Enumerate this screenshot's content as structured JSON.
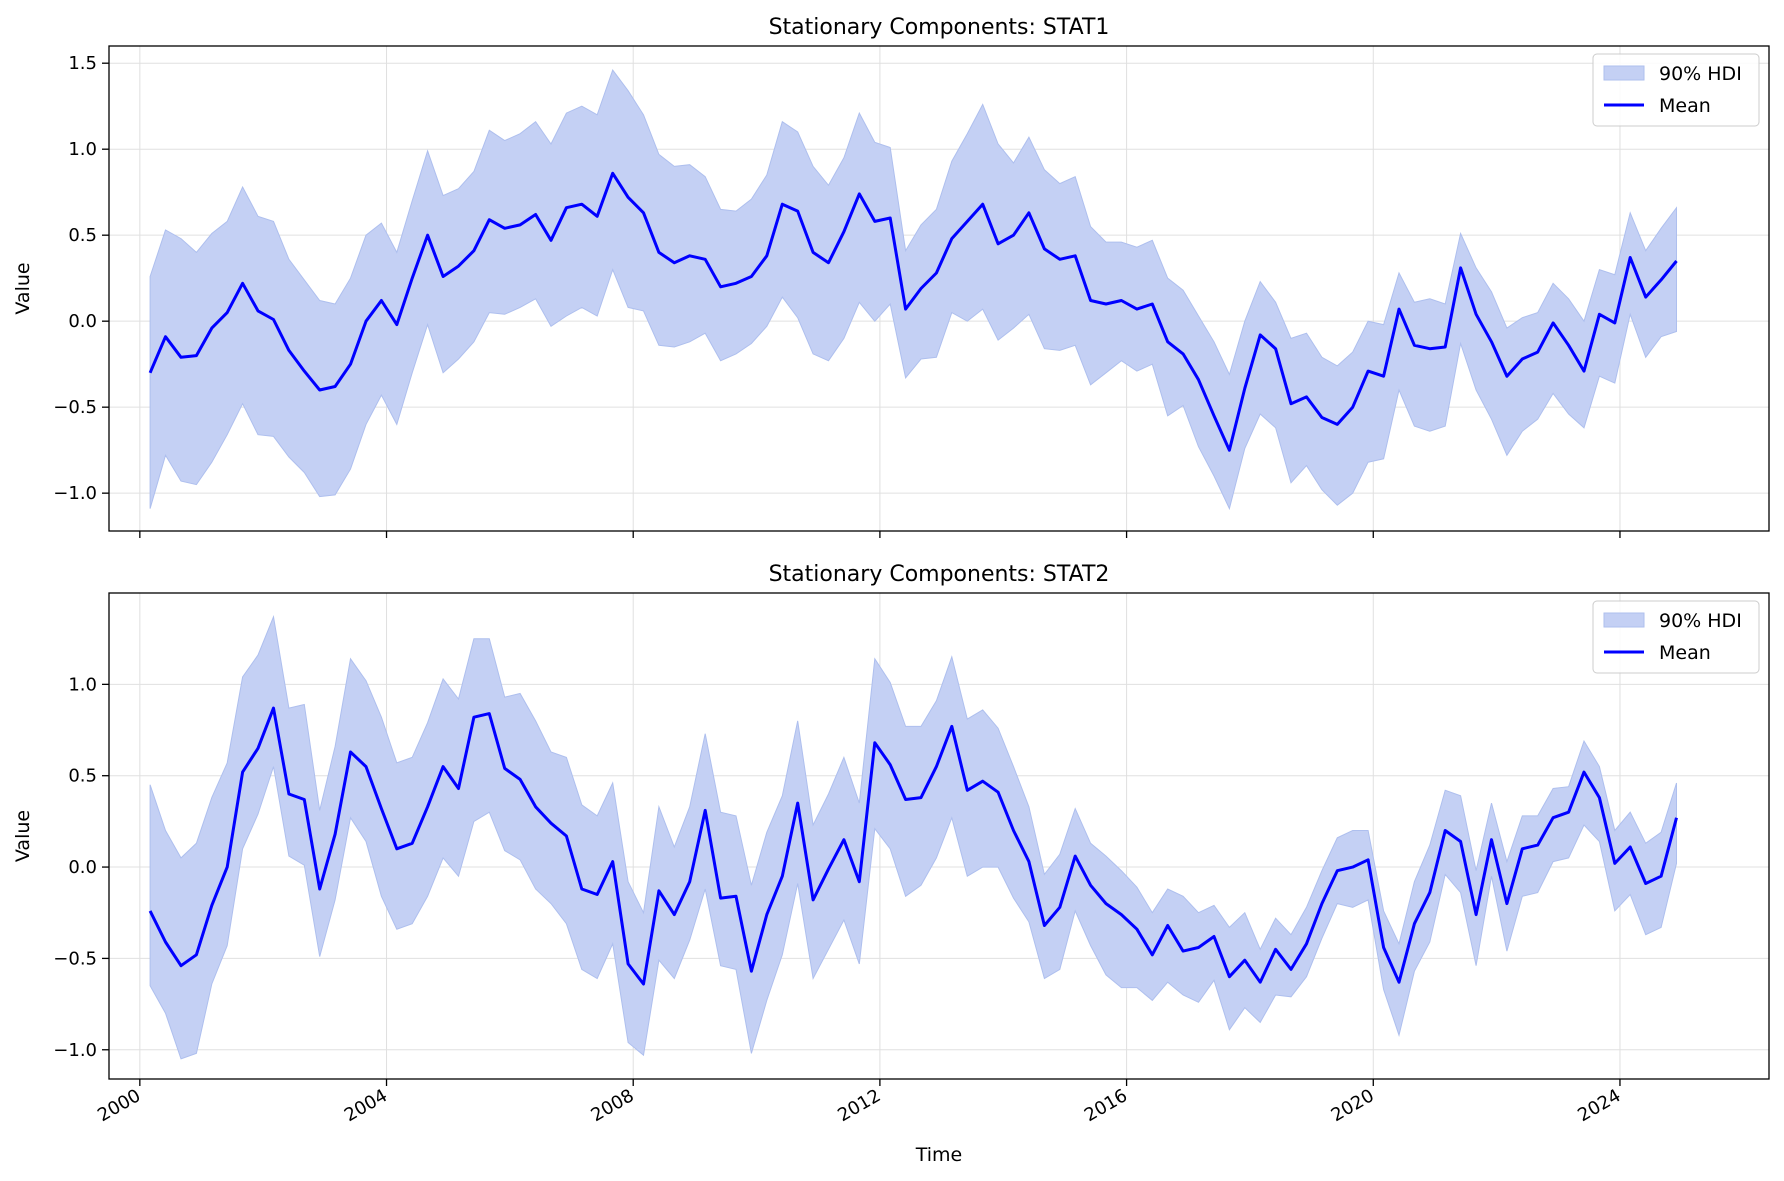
{
  "chart_data": [
    {
      "type": "line",
      "title": "Stationary Components: STAT1",
      "ylabel": "Value",
      "xlabel": "",
      "x_ticks": [
        "2000",
        "2004",
        "2008",
        "2012",
        "2016",
        "2020",
        "2024"
      ],
      "y_ticks": [
        "−1.0",
        "−0.5",
        "0.0",
        "0.5",
        "1.0",
        "1.5"
      ],
      "ylim": [
        -1.22,
        1.6
      ],
      "xlim": [
        "1999-07",
        "2026-06"
      ],
      "grid": true,
      "legend_position": "upper right",
      "legend": [
        "90% HDI",
        "Mean"
      ],
      "colors": {
        "mean": "#0000ff",
        "hdi_fill": "#c4d0f4",
        "hdi_edge": "#aebfee"
      },
      "x": [
        "2000-03",
        "2000-06",
        "2000-09",
        "2000-12",
        "2001-03",
        "2001-06",
        "2001-09",
        "2001-12",
        "2002-03",
        "2002-06",
        "2002-09",
        "2002-12",
        "2003-03",
        "2003-06",
        "2003-09",
        "2003-12",
        "2004-03",
        "2004-06",
        "2004-09",
        "2004-12",
        "2005-03",
        "2005-06",
        "2005-09",
        "2005-12",
        "2006-03",
        "2006-06",
        "2006-09",
        "2006-12",
        "2007-03",
        "2007-06",
        "2007-09",
        "2007-12",
        "2008-03",
        "2008-06",
        "2008-09",
        "2008-12",
        "2009-03",
        "2009-06",
        "2009-09",
        "2009-12",
        "2010-03",
        "2010-06",
        "2010-09",
        "2010-12",
        "2011-03",
        "2011-06",
        "2011-09",
        "2011-12",
        "2012-03",
        "2012-06",
        "2012-09",
        "2012-12",
        "2013-03",
        "2013-06",
        "2013-09",
        "2013-12",
        "2014-03",
        "2014-06",
        "2014-09",
        "2014-12",
        "2015-03",
        "2015-06",
        "2015-09",
        "2015-12",
        "2016-03",
        "2016-06",
        "2016-09",
        "2016-12",
        "2017-03",
        "2017-06",
        "2017-09",
        "2017-12",
        "2018-03",
        "2018-06",
        "2018-09",
        "2018-12",
        "2019-03",
        "2019-06",
        "2019-09",
        "2019-12",
        "2020-03",
        "2020-06",
        "2020-09",
        "2020-12",
        "2021-03",
        "2021-06",
        "2021-09",
        "2021-12",
        "2022-03",
        "2022-06",
        "2022-09",
        "2022-12",
        "2023-03",
        "2023-06",
        "2023-09",
        "2023-12",
        "2024-03",
        "2024-06",
        "2024-09",
        "2024-12"
      ],
      "series": [
        {
          "name": "Mean",
          "values": [
            -0.3,
            -0.09,
            -0.21,
            -0.2,
            -0.04,
            0.05,
            0.22,
            0.06,
            0.01,
            -0.17,
            -0.29,
            -0.4,
            -0.38,
            -0.25,
            0.0,
            0.12,
            -0.02,
            0.25,
            0.5,
            0.26,
            0.32,
            0.41,
            0.59,
            0.54,
            0.56,
            0.62,
            0.47,
            0.66,
            0.68,
            0.61,
            0.86,
            0.72,
            0.63,
            0.4,
            0.34,
            0.38,
            0.36,
            0.2,
            0.22,
            0.26,
            0.38,
            0.68,
            0.64,
            0.4,
            0.34,
            0.52,
            0.74,
            0.58,
            0.6,
            0.07,
            0.19,
            0.28,
            0.48,
            0.58,
            0.68,
            0.45,
            0.5,
            0.63,
            0.42,
            0.36,
            0.38,
            0.12,
            0.1,
            0.12,
            0.07,
            0.1,
            -0.12,
            -0.19,
            -0.34,
            -0.55,
            -0.75,
            -0.39,
            -0.08,
            -0.16,
            -0.48,
            -0.44,
            -0.56,
            -0.6,
            -0.5,
            -0.29,
            -0.32,
            0.07,
            -0.14,
            -0.16,
            -0.15,
            0.31,
            0.04,
            -0.12,
            -0.32,
            -0.22,
            -0.18,
            -0.01,
            -0.14,
            -0.29,
            0.04,
            -0.01,
            0.37,
            0.14,
            0.24,
            0.35
          ]
        },
        {
          "name": "90% HDI",
          "lower": [
            -1.09,
            -0.78,
            -0.93,
            -0.95,
            -0.82,
            -0.66,
            -0.48,
            -0.66,
            -0.67,
            -0.79,
            -0.88,
            -1.02,
            -1.01,
            -0.86,
            -0.6,
            -0.43,
            -0.6,
            -0.3,
            -0.02,
            -0.3,
            -0.22,
            -0.12,
            0.05,
            0.04,
            0.08,
            0.13,
            -0.03,
            0.03,
            0.08,
            0.03,
            0.3,
            0.08,
            0.06,
            -0.14,
            -0.15,
            -0.12,
            -0.07,
            -0.23,
            -0.19,
            -0.13,
            -0.03,
            0.14,
            0.02,
            -0.19,
            -0.23,
            -0.1,
            0.11,
            0.0,
            0.1,
            -0.33,
            -0.22,
            -0.21,
            0.05,
            0.0,
            0.07,
            -0.11,
            -0.04,
            0.04,
            -0.16,
            -0.17,
            -0.14,
            -0.37,
            -0.3,
            -0.23,
            -0.29,
            -0.25,
            -0.55,
            -0.49,
            -0.73,
            -0.9,
            -1.09,
            -0.74,
            -0.54,
            -0.62,
            -0.94,
            -0.84,
            -0.98,
            -1.07,
            -1.0,
            -0.82,
            -0.8,
            -0.4,
            -0.61,
            -0.64,
            -0.61,
            -0.13,
            -0.4,
            -0.57,
            -0.78,
            -0.64,
            -0.57,
            -0.42,
            -0.54,
            -0.62,
            -0.32,
            -0.36,
            0.04,
            -0.21,
            -0.09,
            -0.06
          ],
          "upper": [
            0.26,
            0.53,
            0.48,
            0.4,
            0.51,
            0.58,
            0.78,
            0.61,
            0.58,
            0.36,
            0.24,
            0.12,
            0.1,
            0.25,
            0.5,
            0.57,
            0.4,
            0.7,
            0.99,
            0.73,
            0.77,
            0.87,
            1.11,
            1.05,
            1.09,
            1.16,
            1.03,
            1.21,
            1.25,
            1.2,
            1.46,
            1.34,
            1.2,
            0.97,
            0.9,
            0.91,
            0.84,
            0.65,
            0.64,
            0.71,
            0.85,
            1.16,
            1.1,
            0.9,
            0.79,
            0.95,
            1.21,
            1.04,
            1.01,
            0.41,
            0.56,
            0.65,
            0.93,
            1.09,
            1.26,
            1.03,
            0.92,
            1.07,
            0.88,
            0.8,
            0.84,
            0.55,
            0.46,
            0.46,
            0.43,
            0.47,
            0.25,
            0.18,
            0.03,
            -0.12,
            -0.31,
            0.0,
            0.23,
            0.11,
            -0.1,
            -0.07,
            -0.21,
            -0.26,
            -0.18,
            0.0,
            -0.02,
            0.28,
            0.11,
            0.13,
            0.1,
            0.51,
            0.31,
            0.17,
            -0.04,
            0.02,
            0.05,
            0.22,
            0.13,
            0.0,
            0.3,
            0.27,
            0.63,
            0.41,
            0.54,
            0.66
          ]
        }
      ]
    },
    {
      "type": "line",
      "title": "Stationary Components: STAT2",
      "ylabel": "Value",
      "xlabel": "Time",
      "x_ticks": [
        "2000",
        "2004",
        "2008",
        "2012",
        "2016",
        "2020",
        "2024"
      ],
      "y_ticks": [
        "−1.0",
        "−0.5",
        "0.0",
        "0.5",
        "1.0"
      ],
      "ylim": [
        -1.16,
        1.5
      ],
      "xlim": [
        "1999-07",
        "2026-06"
      ],
      "grid": true,
      "legend_position": "upper right",
      "legend": [
        "90% HDI",
        "Mean"
      ],
      "colors": {
        "mean": "#0000ff",
        "hdi_fill": "#c4d0f4",
        "hdi_edge": "#aebfee"
      },
      "x": [
        "2000-03",
        "2000-06",
        "2000-09",
        "2000-12",
        "2001-03",
        "2001-06",
        "2001-09",
        "2001-12",
        "2002-03",
        "2002-06",
        "2002-09",
        "2002-12",
        "2003-03",
        "2003-06",
        "2003-09",
        "2003-12",
        "2004-03",
        "2004-06",
        "2004-09",
        "2004-12",
        "2005-03",
        "2005-06",
        "2005-09",
        "2005-12",
        "2006-03",
        "2006-06",
        "2006-09",
        "2006-12",
        "2007-03",
        "2007-06",
        "2007-09",
        "2007-12",
        "2008-03",
        "2008-06",
        "2008-09",
        "2008-12",
        "2009-03",
        "2009-06",
        "2009-09",
        "2009-12",
        "2010-03",
        "2010-06",
        "2010-09",
        "2010-12",
        "2011-03",
        "2011-06",
        "2011-09",
        "2011-12",
        "2012-03",
        "2012-06",
        "2012-09",
        "2012-12",
        "2013-03",
        "2013-06",
        "2013-09",
        "2013-12",
        "2014-03",
        "2014-06",
        "2014-09",
        "2014-12",
        "2015-03",
        "2015-06",
        "2015-09",
        "2015-12",
        "2016-03",
        "2016-06",
        "2016-09",
        "2016-12",
        "2017-03",
        "2017-06",
        "2017-09",
        "2017-12",
        "2018-03",
        "2018-06",
        "2018-09",
        "2018-12",
        "2019-03",
        "2019-06",
        "2019-09",
        "2019-12",
        "2020-03",
        "2020-06",
        "2020-09",
        "2020-12",
        "2021-03",
        "2021-06",
        "2021-09",
        "2021-12",
        "2022-03",
        "2022-06",
        "2022-09",
        "2022-12",
        "2023-03",
        "2023-06",
        "2023-09",
        "2023-12",
        "2024-03",
        "2024-06",
        "2024-09",
        "2024-12"
      ],
      "series": [
        {
          "name": "Mean",
          "values": [
            -0.24,
            -0.41,
            -0.54,
            -0.48,
            -0.21,
            0.0,
            0.52,
            0.65,
            0.87,
            0.4,
            0.37,
            -0.12,
            0.18,
            0.63,
            0.55,
            0.32,
            0.1,
            0.13,
            0.33,
            0.55,
            0.43,
            0.82,
            0.84,
            0.54,
            0.48,
            0.33,
            0.24,
            0.17,
            -0.12,
            -0.15,
            0.03,
            -0.53,
            -0.64,
            -0.13,
            -0.26,
            -0.08,
            0.31,
            -0.17,
            -0.16,
            -0.57,
            -0.26,
            -0.05,
            0.35,
            -0.18,
            -0.01,
            0.15,
            -0.08,
            0.68,
            0.56,
            0.37,
            0.38,
            0.55,
            0.77,
            0.42,
            0.47,
            0.41,
            0.2,
            0.03,
            -0.32,
            -0.22,
            0.06,
            -0.1,
            -0.2,
            -0.26,
            -0.34,
            -0.48,
            -0.32,
            -0.46,
            -0.44,
            -0.38,
            -0.6,
            -0.51,
            -0.63,
            -0.45,
            -0.56,
            -0.42,
            -0.2,
            -0.02,
            0.0,
            0.04,
            -0.44,
            -0.63,
            -0.31,
            -0.14,
            0.2,
            0.14,
            -0.26,
            0.15,
            -0.2,
            0.1,
            0.12,
            0.27,
            0.3,
            0.52,
            0.38,
            0.02,
            0.11,
            -0.09,
            -0.05,
            0.27
          ]
        },
        {
          "name": "90% HDI",
          "lower": [
            -0.65,
            -0.8,
            -1.05,
            -1.02,
            -0.64,
            -0.43,
            0.1,
            0.29,
            0.55,
            0.06,
            0.01,
            -0.49,
            -0.18,
            0.27,
            0.14,
            -0.16,
            -0.34,
            -0.31,
            -0.16,
            0.05,
            -0.05,
            0.25,
            0.3,
            0.09,
            0.04,
            -0.12,
            -0.2,
            -0.31,
            -0.56,
            -0.61,
            -0.42,
            -0.96,
            -1.03,
            -0.51,
            -0.61,
            -0.4,
            -0.12,
            -0.54,
            -0.56,
            -1.02,
            -0.73,
            -0.48,
            -0.09,
            -0.61,
            -0.45,
            -0.29,
            -0.53,
            0.21,
            0.1,
            -0.16,
            -0.1,
            0.05,
            0.27,
            -0.05,
            0.0,
            0.0,
            -0.17,
            -0.3,
            -0.61,
            -0.56,
            -0.24,
            -0.43,
            -0.59,
            -0.66,
            -0.66,
            -0.73,
            -0.63,
            -0.7,
            -0.74,
            -0.62,
            -0.89,
            -0.77,
            -0.85,
            -0.7,
            -0.71,
            -0.6,
            -0.39,
            -0.2,
            -0.22,
            -0.18,
            -0.67,
            -0.92,
            -0.57,
            -0.41,
            -0.04,
            -0.14,
            -0.54,
            -0.05,
            -0.46,
            -0.16,
            -0.14,
            0.03,
            0.05,
            0.23,
            0.14,
            -0.24,
            -0.15,
            -0.37,
            -0.33,
            0.02
          ],
          "upper": [
            0.45,
            0.2,
            0.05,
            0.13,
            0.38,
            0.57,
            1.04,
            1.16,
            1.37,
            0.87,
            0.89,
            0.31,
            0.66,
            1.14,
            1.02,
            0.82,
            0.57,
            0.6,
            0.79,
            1.03,
            0.92,
            1.25,
            1.25,
            0.93,
            0.95,
            0.8,
            0.63,
            0.6,
            0.34,
            0.28,
            0.46,
            -0.08,
            -0.25,
            0.33,
            0.11,
            0.33,
            0.73,
            0.3,
            0.28,
            -0.1,
            0.19,
            0.39,
            0.8,
            0.23,
            0.4,
            0.6,
            0.35,
            1.14,
            1.01,
            0.77,
            0.77,
            0.91,
            1.15,
            0.81,
            0.86,
            0.76,
            0.55,
            0.33,
            -0.04,
            0.07,
            0.32,
            0.13,
            0.06,
            -0.02,
            -0.11,
            -0.25,
            -0.12,
            -0.16,
            -0.25,
            -0.21,
            -0.33,
            -0.25,
            -0.45,
            -0.28,
            -0.37,
            -0.22,
            -0.02,
            0.16,
            0.2,
            0.2,
            -0.24,
            -0.42,
            -0.08,
            0.12,
            0.42,
            0.39,
            -0.02,
            0.35,
            0.03,
            0.28,
            0.28,
            0.43,
            0.44,
            0.69,
            0.55,
            0.2,
            0.3,
            0.13,
            0.19,
            0.46
          ]
        }
      ]
    }
  ]
}
